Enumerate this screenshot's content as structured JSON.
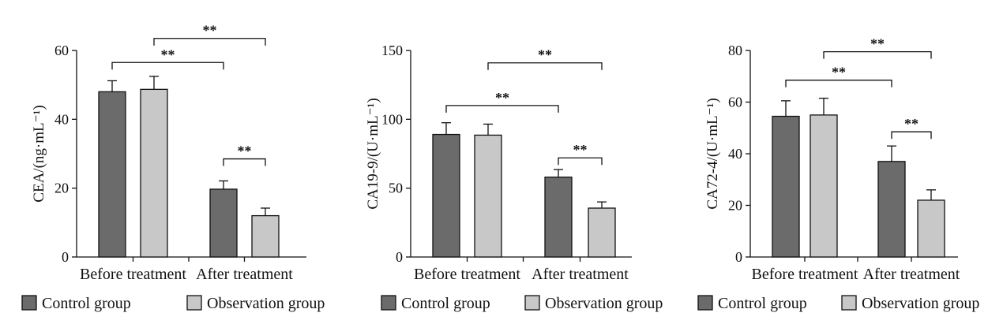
{
  "legend": {
    "control_label": "Control group",
    "observation_label": "Observation group"
  },
  "colors": {
    "control": "#6b6b6b",
    "observation": "#c8c8c8",
    "axis": "#111111"
  },
  "chart_data": [
    {
      "type": "bar",
      "categories": [
        "Before treatment",
        "After treatment"
      ],
      "series": [
        {
          "name": "Control group",
          "values": [
            48.0,
            19.7
          ],
          "errors": [
            3.2,
            2.4
          ]
        },
        {
          "name": "Observation group",
          "values": [
            48.7,
            12.0
          ],
          "errors": [
            3.8,
            2.2
          ]
        }
      ],
      "ylabel": "CEA/(ng·mL⁻¹)",
      "ylim": [
        0,
        60
      ],
      "yticks": [
        0,
        20,
        40,
        60
      ],
      "significance": [
        {
          "from": [
            0,
            0
          ],
          "to": [
            1,
            0
          ],
          "label": "**",
          "level": 56.5
        },
        {
          "from": [
            0,
            1
          ],
          "to": [
            1,
            1
          ],
          "label": "**",
          "level": 63.5
        },
        {
          "from": [
            1,
            0
          ],
          "to": [
            1,
            1
          ],
          "label": "**",
          "level": 28.5
        }
      ],
      "legend_position": "bottom"
    },
    {
      "type": "bar",
      "categories": [
        "Before treatment",
        "After treatment"
      ],
      "series": [
        {
          "name": "Control group",
          "values": [
            89.0,
            58.0
          ],
          "errors": [
            8.5,
            5.5
          ]
        },
        {
          "name": "Observation group",
          "values": [
            88.5,
            35.5
          ],
          "errors": [
            8.0,
            4.5
          ]
        }
      ],
      "ylabel": "CA19-9/(U·mL⁻¹)",
      "ylim": [
        0,
        150
      ],
      "yticks": [
        0,
        50,
        100,
        150
      ],
      "significance": [
        {
          "from": [
            0,
            0
          ],
          "to": [
            1,
            0
          ],
          "label": "**",
          "level": 110
        },
        {
          "from": [
            0,
            1
          ],
          "to": [
            1,
            1
          ],
          "label": "**",
          "level": 141
        },
        {
          "from": [
            1,
            0
          ],
          "to": [
            1,
            1
          ],
          "label": "**",
          "level": 72
        }
      ],
      "legend_position": "bottom"
    },
    {
      "type": "bar",
      "categories": [
        "Before treatment",
        "After treatment"
      ],
      "series": [
        {
          "name": "Control group",
          "values": [
            54.5,
            37.0
          ],
          "errors": [
            6.0,
            6.0
          ]
        },
        {
          "name": "Observation group",
          "values": [
            55.0,
            22.0
          ],
          "errors": [
            6.5,
            4.0
          ]
        }
      ],
      "ylabel": "CA72-4/(U·mL⁻¹)",
      "ylim": [
        0,
        80
      ],
      "yticks": [
        0,
        20,
        40,
        60,
        80
      ],
      "significance": [
        {
          "from": [
            0,
            0
          ],
          "to": [
            1,
            0
          ],
          "label": "**",
          "level": 68.5
        },
        {
          "from": [
            0,
            1
          ],
          "to": [
            1,
            1
          ],
          "label": "**",
          "level": 79.5
        },
        {
          "from": [
            1,
            0
          ],
          "to": [
            1,
            1
          ],
          "label": "**",
          "level": 48.5
        }
      ],
      "legend_position": "bottom"
    }
  ]
}
